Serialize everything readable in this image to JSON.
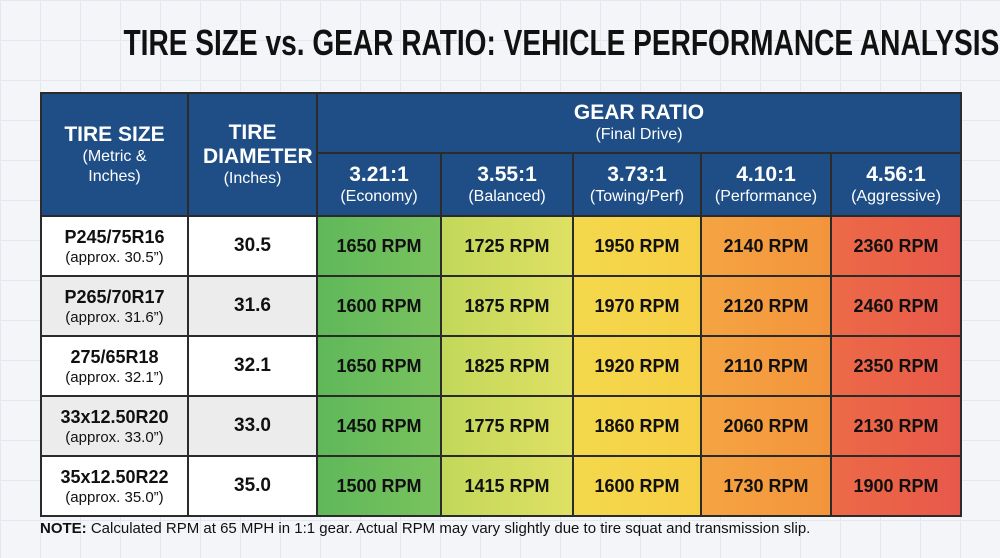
{
  "title": "TIRE SIZE vs. GEAR RATIO: VEHICLE PERFORMANCE ANALYSIS",
  "table": {
    "header": {
      "tire_size": {
        "label": "TIRE SIZE",
        "sub": "(Metric & Inches)"
      },
      "diameter": {
        "label": "TIRE DIAMETER",
        "sub": "(Inches)"
      },
      "gear_ratio": {
        "label": "GEAR RATIO",
        "sub": "(Final Drive)"
      },
      "ratios": [
        {
          "label": "3.21:1",
          "sub": "(Economy)"
        },
        {
          "label": "3.55:1",
          "sub": "(Balanced)"
        },
        {
          "label": "3.73:1",
          "sub": "(Towing/Perf)"
        },
        {
          "label": "4.10:1",
          "sub": "(Performance)"
        },
        {
          "label": "4.56:1",
          "sub": "(Aggressive)"
        }
      ]
    },
    "rows": [
      {
        "tire": "P245/75R16",
        "approx": "(approx. 30.5”)",
        "diameter": "30.5",
        "rpm": [
          "1650 RPM",
          "1725 RPM",
          "1950 RPM",
          "2140 RPM",
          "2360 RPM"
        ]
      },
      {
        "tire": "P265/70R17",
        "approx": "(approx. 31.6”)",
        "diameter": "31.6",
        "rpm": [
          "1600 RPM",
          "1875 RPM",
          "1970 RPM",
          "2120 RPM",
          "2460 RPM"
        ]
      },
      {
        "tire": "275/65R18",
        "approx": "(approx. 32.1”)",
        "diameter": "32.1",
        "rpm": [
          "1650 RPM",
          "1825 RPM",
          "1920 RPM",
          "2110 RPM",
          "2350 RPM"
        ]
      },
      {
        "tire": "33x12.50R20",
        "approx": "(approx. 33.0”)",
        "diameter": "33.0",
        "rpm": [
          "1450 RPM",
          "1775 RPM",
          "1860 RPM",
          "2060 RPM",
          "2130 RPM"
        ]
      },
      {
        "tire": "35x12.50R22",
        "approx": "(approx. 35.0”)",
        "diameter": "35.0",
        "rpm": [
          "1500 RPM",
          "1415 RPM",
          "1600 RPM",
          "1730 RPM",
          "1900 RPM"
        ]
      }
    ]
  },
  "note": {
    "label": "NOTE:",
    "text": "Calculated RPM at 65 MPH in 1:1 gear. Actual RPM may vary slightly due to tire squat and transmission slip."
  }
}
